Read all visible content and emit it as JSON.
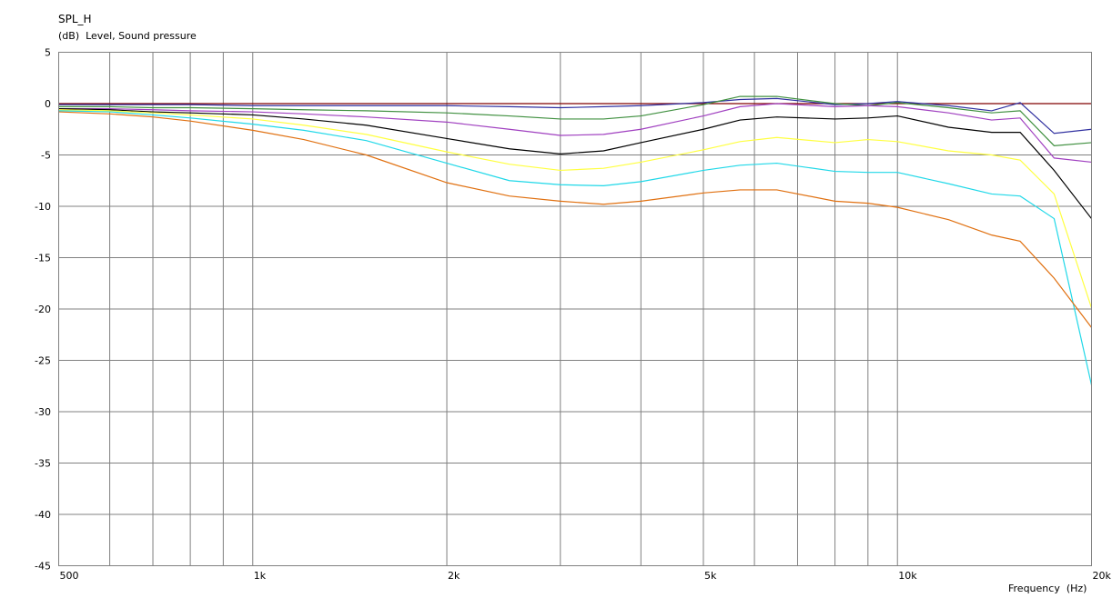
{
  "chart_data": {
    "type": "line",
    "title": "SPL_H",
    "y_label": "(dB)  Level, Sound pressure",
    "x_label": "Frequency  (Hz)",
    "x_scale": "log",
    "grid": true,
    "xlim": [
      500,
      20000
    ],
    "xticks": [
      500,
      {
        "value": 1000,
        "label": "1k"
      },
      {
        "value": 2000,
        "label": "2k"
      },
      {
        "value": 5000,
        "label": "5k"
      },
      {
        "value": 10000,
        "label": "10k"
      },
      {
        "value": 20000,
        "label": "20k"
      }
    ],
    "xminorticks": [
      600,
      700,
      800,
      900,
      3000,
      4000,
      6000,
      7000,
      8000,
      9000
    ],
    "ylim": [
      -45,
      5
    ],
    "yticks": [
      5,
      0,
      -5,
      -10,
      -15,
      -20,
      -25,
      -30,
      -35,
      -40,
      -45
    ],
    "x": [
      500,
      600,
      700,
      800,
      1000,
      1200,
      1500,
      2000,
      2500,
      3000,
      3500,
      4000,
      5000,
      5700,
      6500,
      8000,
      9000,
      10000,
      12000,
      14000,
      15500,
      17500,
      20000
    ],
    "series": [
      {
        "color": "#800000",
        "values": [
          0,
          0,
          0,
          0,
          0,
          0,
          0,
          0,
          0,
          0,
          0,
          0,
          0,
          0,
          0,
          0,
          0,
          0,
          0,
          0,
          0,
          0,
          0
        ]
      },
      {
        "color": "#3030a0",
        "values": [
          -0.1,
          -0.1,
          -0.1,
          -0.1,
          -0.2,
          -0.2,
          -0.2,
          -0.2,
          -0.3,
          -0.4,
          -0.3,
          -0.2,
          0.1,
          0.4,
          0.5,
          -0.1,
          0.0,
          0.2,
          -0.2,
          -0.7,
          0.1,
          -2.9,
          -2.5
        ]
      },
      {
        "color": "#409040",
        "values": [
          -0.3,
          -0.3,
          -0.4,
          -0.4,
          -0.5,
          -0.6,
          -0.7,
          -0.9,
          -1.2,
          -1.5,
          -1.5,
          -1.2,
          -0.1,
          0.7,
          0.7,
          0.0,
          -0.2,
          0.1,
          -0.4,
          -0.9,
          -0.7,
          -4.1,
          -3.8
        ]
      },
      {
        "color": "#a040c0",
        "values": [
          -0.5,
          -0.5,
          -0.6,
          -0.7,
          -0.8,
          -1.0,
          -1.3,
          -1.8,
          -2.5,
          -3.1,
          -3.0,
          -2.5,
          -1.2,
          -0.3,
          0.0,
          -0.3,
          -0.2,
          -0.3,
          -0.9,
          -1.6,
          -1.4,
          -5.3,
          -5.7
        ]
      },
      {
        "color": "#000000",
        "values": [
          -0.5,
          -0.6,
          -0.8,
          -0.9,
          -1.1,
          -1.5,
          -2.1,
          -3.4,
          -4.4,
          -4.9,
          -4.6,
          -3.8,
          -2.5,
          -1.6,
          -1.3,
          -1.5,
          -1.4,
          -1.2,
          -2.3,
          -2.8,
          -2.8,
          -6.5,
          -11.2
        ]
      },
      {
        "color": "#ffff40",
        "values": [
          -0.6,
          -0.7,
          -0.9,
          -1.1,
          -1.5,
          -2.1,
          -3.0,
          -4.7,
          -5.9,
          -6.5,
          -6.3,
          -5.7,
          -4.5,
          -3.7,
          -3.3,
          -3.8,
          -3.5,
          -3.7,
          -4.6,
          -5.0,
          -5.5,
          -8.8,
          -19.9
        ]
      },
      {
        "color": "#20d8e8",
        "values": [
          -0.7,
          -0.8,
          -1.1,
          -1.4,
          -2.0,
          -2.6,
          -3.6,
          -5.8,
          -7.5,
          -7.9,
          -8.0,
          -7.6,
          -6.5,
          -6.0,
          -5.8,
          -6.6,
          -6.7,
          -6.7,
          -7.8,
          -8.8,
          -9.0,
          -11.2,
          -27.4
        ]
      },
      {
        "color": "#e07010",
        "values": [
          -0.8,
          -1.0,
          -1.3,
          -1.7,
          -2.6,
          -3.5,
          -5.0,
          -7.7,
          -9.0,
          -9.5,
          -9.8,
          -9.5,
          -8.7,
          -8.4,
          -8.4,
          -9.5,
          -9.7,
          -10.1,
          -11.3,
          -12.8,
          -13.4,
          -17.0,
          -21.8
        ]
      }
    ]
  }
}
